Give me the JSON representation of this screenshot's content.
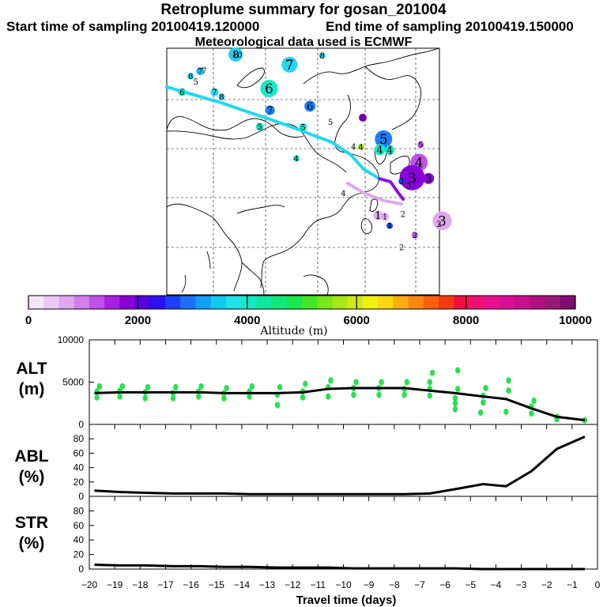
{
  "header": {
    "title": "Retroplume summary for gosan_201004",
    "start_time": "Start time of sampling 20100419.120000",
    "end_time": "End time of sampling 20100419.150000",
    "met_data": "Meteorological data used is ECMWF"
  },
  "colors": {
    "colorbar": [
      "#f4e4f8",
      "#ecc8f4",
      "#e0a8f0",
      "#d080ec",
      "#c050e8",
      "#a820e0",
      "#8a00d8",
      "#5a00e0",
      "#2c10f0",
      "#1c40f8",
      "#1c70f8",
      "#10a0f8",
      "#10c8f0",
      "#20e0e8",
      "#18e8c8",
      "#10e8a0",
      "#10e878",
      "#18e850",
      "#40e828",
      "#78e818",
      "#a8e818",
      "#d0e818",
      "#f0f010",
      "#f8d810",
      "#f8b010",
      "#f88810",
      "#f86010",
      "#f83810",
      "#f01040",
      "#f01070",
      "#e81090",
      "#d81098",
      "#c8108c",
      "#b01080",
      "#981878",
      "#801070"
    ],
    "alt_points": "#28e050",
    "mean_line": "#000000",
    "coast": "#000000",
    "trail_cyan": "#20d8f0",
    "trail_purple": "#8a10e0",
    "trail_pink": "#e0a8f0"
  },
  "colorbar": {
    "ticks": [
      "0",
      "2000",
      "4000",
      "6000",
      "8000",
      "10000"
    ],
    "label": "Altitude (m)"
  },
  "map": {
    "markers": [
      {
        "label": "8",
        "lon": 80.2,
        "lat": 53.5,
        "color": "#20d0f0",
        "r": 9
      },
      {
        "label": "10",
        "lon": 80.7,
        "lat": 53.4,
        "color": "#20d0f0",
        "r": 0
      },
      {
        "label": "7",
        "lon": 96.0,
        "lat": 51.0,
        "color": "#20d8f0",
        "r": 10
      },
      {
        "label": "8",
        "lon": 105.6,
        "lat": 53.2,
        "color": "#20d0f0",
        "r": 4
      },
      {
        "label": "7",
        "lon": 69.8,
        "lat": 49.4,
        "color": "#10c0e8",
        "r": 5
      },
      {
        "label": "7",
        "lon": 71.0,
        "lat": 49.5,
        "color": "#20d0f0",
        "r": 0
      },
      {
        "label": "8",
        "lon": 67.0,
        "lat": 48.2,
        "color": "#20d0f0",
        "r": 4
      },
      {
        "label": "5",
        "lon": 68.5,
        "lat": 46.8,
        "color": "#f0f010",
        "r": 0
      },
      {
        "label": "6",
        "lon": 64.5,
        "lat": 44.3,
        "color": "#18e8c8",
        "r": 5
      },
      {
        "label": "7",
        "lon": 74.0,
        "lat": 44.3,
        "color": "#20d8f0",
        "r": 5
      },
      {
        "label": "8",
        "lon": 76.1,
        "lat": 43.2,
        "color": "#20d0f0",
        "r": 4
      },
      {
        "label": "6",
        "lon": 90.0,
        "lat": 45.2,
        "color": "#18e8c8",
        "r": 11
      },
      {
        "label": "7",
        "lon": 90.3,
        "lat": 39.9,
        "color": "#1c80f8",
        "r": 6
      },
      {
        "label": "5",
        "lon": 87.3,
        "lat": 35.9,
        "color": "#18e8c8",
        "r": 5
      },
      {
        "label": "6",
        "lon": 102.0,
        "lat": 40.9,
        "color": "#1c80f8",
        "r": 7
      },
      {
        "label": "5",
        "lon": 100.0,
        "lat": 35.8,
        "color": "#18e8c8",
        "r": 5
      },
      {
        "label": "5",
        "lon": 108.0,
        "lat": 37.0,
        "color": "#000000",
        "r": 0
      },
      {
        "label": "6",
        "lon": 117.5,
        "lat": 38.1,
        "color": "#8a00d8",
        "r": 5
      },
      {
        "label": "5",
        "lon": 123.6,
        "lat": 32.9,
        "color": "#1c80f8",
        "r": 11
      },
      {
        "label": "4",
        "lon": 114.8,
        "lat": 31.1,
        "color": "#a8e818",
        "r": 0
      },
      {
        "label": "4",
        "lon": 117.0,
        "lat": 31.0,
        "color": "#a8e818",
        "r": 4
      },
      {
        "label": "4",
        "lon": 122.5,
        "lat": 30.3,
        "color": "#18e8c8",
        "r": 7
      },
      {
        "label": "4",
        "lon": 125.4,
        "lat": 30.2,
        "color": "#18e8c8",
        "r": 6
      },
      {
        "label": "4",
        "lon": 98.0,
        "lat": 28.2,
        "color": "#18e8c8",
        "r": 4
      },
      {
        "label": "5",
        "lon": 134.5,
        "lat": 31.5,
        "color": "#c050e8",
        "r": 4
      },
      {
        "label": "4",
        "lon": 134.0,
        "lat": 27.2,
        "color": "#c050e8",
        "r": 11
      },
      {
        "label": "3",
        "lon": 132.0,
        "lat": 23.5,
        "color": "#8a00d8",
        "r": 16
      },
      {
        "label": "3",
        "lon": 136.8,
        "lat": 23.3,
        "color": "#8a00d8",
        "r": 7
      },
      {
        "label": "3",
        "lon": 128.9,
        "lat": 22.6,
        "color": "#1c40f8",
        "r": 4
      },
      {
        "label": "3",
        "lon": 131.0,
        "lat": 21.5,
        "color": "#1c40f8",
        "r": 0
      },
      {
        "label": "4",
        "lon": 111.8,
        "lat": 19.7,
        "color": "#000000",
        "r": 0
      },
      {
        "label": "2",
        "lon": 129.3,
        "lat": 14.6,
        "color": "#e0a8f0",
        "r": 0
      },
      {
        "label": "1",
        "lon": 122.0,
        "lat": 14.3,
        "color": "#e0a8f0",
        "r": 6
      },
      {
        "label": "1",
        "lon": 124.0,
        "lat": 14.0,
        "color": "#e0a8f0",
        "r": 5
      },
      {
        "label": "1",
        "lon": 125.4,
        "lat": 11.8,
        "color": "#1c40f8",
        "r": 4
      },
      {
        "label": "3",
        "lon": 140.8,
        "lat": 13.0,
        "color": "#e0a8f0",
        "r": 12
      },
      {
        "label": "2",
        "lon": 139.9,
        "lat": 12.2,
        "color": "#e0a8f0",
        "r": 0
      },
      {
        "label": "2",
        "lon": 132.8,
        "lat": 9.5,
        "color": "#c050e8",
        "r": 4
      },
      {
        "label": "2",
        "lon": 128.9,
        "lat": 6.5,
        "color": "#000000",
        "r": 0
      }
    ]
  },
  "chart_data": [
    {
      "type": "scatter",
      "title": "ALT (m)",
      "xlabel": "Travel time (days)",
      "ylabel": "ALT (m)",
      "ylim": [
        0,
        10000
      ],
      "y_ticks": [
        "0",
        "5000",
        "10000"
      ],
      "xlim": [
        -20,
        0
      ],
      "x": [
        -19.8,
        -18.8,
        -17.8,
        -16.7,
        -15.7,
        -14.7,
        -13.7,
        -12.6,
        -11.6,
        -10.6,
        -9.6,
        -8.6,
        -7.6,
        -6.6,
        -5.6,
        -4.5,
        -3.6,
        -2.6,
        -1.6,
        -0.5
      ],
      "mean_altitude": [
        3700,
        3800,
        3800,
        3800,
        3800,
        3700,
        3700,
        3700,
        3800,
        4200,
        4300,
        4300,
        4300,
        4000,
        3700,
        3300,
        3000,
        1900,
        900,
        500
      ],
      "points": [
        {
          "x": -19.7,
          "y": 3200
        },
        {
          "x": -19.7,
          "y": 3900
        },
        {
          "x": -19.6,
          "y": 4500
        },
        {
          "x": -18.8,
          "y": 3300
        },
        {
          "x": -18.8,
          "y": 4000
        },
        {
          "x": -18.7,
          "y": 4500
        },
        {
          "x": -17.8,
          "y": 3100
        },
        {
          "x": -17.8,
          "y": 3800
        },
        {
          "x": -17.7,
          "y": 4400
        },
        {
          "x": -16.7,
          "y": 3100
        },
        {
          "x": -16.7,
          "y": 3700
        },
        {
          "x": -16.6,
          "y": 4400
        },
        {
          "x": -15.7,
          "y": 3300
        },
        {
          "x": -15.7,
          "y": 3900
        },
        {
          "x": -15.6,
          "y": 4500
        },
        {
          "x": -14.7,
          "y": 3100
        },
        {
          "x": -14.7,
          "y": 3700
        },
        {
          "x": -14.6,
          "y": 4300
        },
        {
          "x": -13.7,
          "y": 3300
        },
        {
          "x": -13.7,
          "y": 3900
        },
        {
          "x": -13.6,
          "y": 4500
        },
        {
          "x": -12.6,
          "y": 2300
        },
        {
          "x": -12.6,
          "y": 3500
        },
        {
          "x": -12.5,
          "y": 4400
        },
        {
          "x": -11.6,
          "y": 3200
        },
        {
          "x": -11.6,
          "y": 3900
        },
        {
          "x": -11.5,
          "y": 4800
        },
        {
          "x": -10.6,
          "y": 3300
        },
        {
          "x": -10.6,
          "y": 4400
        },
        {
          "x": -10.5,
          "y": 5200
        },
        {
          "x": -9.6,
          "y": 3500
        },
        {
          "x": -9.6,
          "y": 4300
        },
        {
          "x": -9.5,
          "y": 5000
        },
        {
          "x": -8.6,
          "y": 3500
        },
        {
          "x": -8.6,
          "y": 4300
        },
        {
          "x": -8.5,
          "y": 5000
        },
        {
          "x": -7.6,
          "y": 3500
        },
        {
          "x": -7.6,
          "y": 4200
        },
        {
          "x": -7.5,
          "y": 5000
        },
        {
          "x": -6.6,
          "y": 3400
        },
        {
          "x": -6.6,
          "y": 4200
        },
        {
          "x": -6.6,
          "y": 5000
        },
        {
          "x": -6.5,
          "y": 6100
        },
        {
          "x": -5.6,
          "y": 1800
        },
        {
          "x": -5.6,
          "y": 2500
        },
        {
          "x": -5.6,
          "y": 3100
        },
        {
          "x": -5.5,
          "y": 4200
        },
        {
          "x": -5.5,
          "y": 6400
        },
        {
          "x": -4.6,
          "y": 1400
        },
        {
          "x": -4.5,
          "y": 2600
        },
        {
          "x": -4.5,
          "y": 3400
        },
        {
          "x": -4.4,
          "y": 4300
        },
        {
          "x": -3.6,
          "y": 1500
        },
        {
          "x": -3.5,
          "y": 4000
        },
        {
          "x": -3.5,
          "y": 5200
        },
        {
          "x": -2.6,
          "y": 1300
        },
        {
          "x": -2.6,
          "y": 2100
        },
        {
          "x": -2.5,
          "y": 2800
        },
        {
          "x": -1.6,
          "y": 600
        },
        {
          "x": -1.6,
          "y": 900
        },
        {
          "x": -0.5,
          "y": 500
        }
      ]
    },
    {
      "type": "line",
      "title": "ABL (%)",
      "ylabel": "ABL (%)",
      "ylim": [
        0,
        100
      ],
      "y_ticks": [
        "0",
        "20",
        "40",
        "60",
        "80"
      ],
      "x": [
        -19.8,
        -18.8,
        -17.8,
        -16.7,
        -15.7,
        -14.7,
        -13.7,
        -12.6,
        -11.6,
        -10.6,
        -9.6,
        -8.6,
        -7.6,
        -6.6,
        -5.6,
        -4.5,
        -3.6,
        -2.6,
        -1.6,
        -0.5
      ],
      "values": [
        8,
        6,
        5,
        4,
        4,
        4,
        3,
        3,
        3,
        3,
        3,
        3,
        3,
        4,
        10,
        17,
        14,
        35,
        66,
        83
      ]
    },
    {
      "type": "line",
      "title": "STR (%)",
      "ylabel": "STR (%)",
      "xlabel": "Travel time (days)",
      "ylim": [
        0,
        100
      ],
      "y_ticks": [
        "0",
        "20",
        "40",
        "60",
        "80"
      ],
      "x_ticks": [
        "-20",
        "-19",
        "-18",
        "-17",
        "-16",
        "-15",
        "-14",
        "-13",
        "-12",
        "-11",
        "-10",
        "-9",
        "-8",
        "-7",
        "-6",
        "-5",
        "-4",
        "-3",
        "-2",
        "-1",
        "0"
      ],
      "x": [
        -19.8,
        -18.8,
        -17.8,
        -16.7,
        -15.7,
        -14.7,
        -13.7,
        -12.6,
        -11.6,
        -10.6,
        -9.6,
        -8.6,
        -7.6,
        -6.6,
        -5.6,
        -4.5,
        -3.6,
        -2.6,
        -1.6,
        -0.5
      ],
      "values": [
        6,
        5,
        5,
        4,
        4,
        3,
        3,
        2,
        2,
        2,
        1,
        1,
        1,
        1,
        1,
        0,
        0,
        0,
        0,
        0
      ]
    }
  ]
}
